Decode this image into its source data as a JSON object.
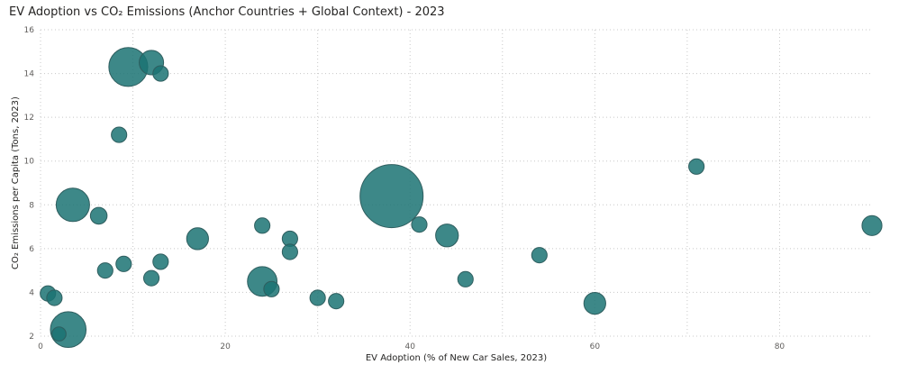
{
  "chart_data": {
    "type": "scatter",
    "title": "EV Adoption vs CO₂ Emissions (Anchor Countries + Global Context) - 2023",
    "xlabel": "EV Adoption (% of New Car Sales, 2023)",
    "ylabel": "CO₂ Emissions per Capita (Tons, 2023)",
    "xlim": [
      0,
      90
    ],
    "ylim": [
      2,
      16
    ],
    "xticks": [
      0,
      20,
      40,
      60,
      80
    ],
    "yticks": [
      2,
      4,
      6,
      8,
      10,
      12,
      14,
      16
    ],
    "grid": true,
    "bubble_color": "#1b7373",
    "points": [
      {
        "x": 38,
        "y": 8.4,
        "size": 1.0
      },
      {
        "x": 9.5,
        "y": 14.3,
        "size": 0.38
      },
      {
        "x": 12,
        "y": 14.5,
        "size": 0.15
      },
      {
        "x": 13,
        "y": 14.0,
        "size": 0.06
      },
      {
        "x": 8.5,
        "y": 11.2,
        "size": 0.06
      },
      {
        "x": 3.5,
        "y": 8.0,
        "size": 0.28
      },
      {
        "x": 6.3,
        "y": 7.5,
        "size": 0.07
      },
      {
        "x": 3,
        "y": 2.3,
        "size": 0.32
      },
      {
        "x": 2,
        "y": 2.1,
        "size": 0.05
      },
      {
        "x": 0.8,
        "y": 3.95,
        "size": 0.06
      },
      {
        "x": 1.5,
        "y": 3.75,
        "size": 0.06
      },
      {
        "x": 7,
        "y": 5.0,
        "size": 0.06
      },
      {
        "x": 9,
        "y": 5.3,
        "size": 0.06
      },
      {
        "x": 12,
        "y": 4.65,
        "size": 0.06
      },
      {
        "x": 13,
        "y": 5.4,
        "size": 0.06
      },
      {
        "x": 17,
        "y": 6.45,
        "size": 0.12
      },
      {
        "x": 24,
        "y": 7.05,
        "size": 0.06
      },
      {
        "x": 24,
        "y": 4.5,
        "size": 0.22
      },
      {
        "x": 25,
        "y": 4.15,
        "size": 0.06
      },
      {
        "x": 27,
        "y": 6.45,
        "size": 0.06
      },
      {
        "x": 27,
        "y": 5.85,
        "size": 0.06
      },
      {
        "x": 30,
        "y": 3.75,
        "size": 0.06
      },
      {
        "x": 32,
        "y": 3.6,
        "size": 0.06
      },
      {
        "x": 41,
        "y": 7.1,
        "size": 0.06
      },
      {
        "x": 44,
        "y": 6.6,
        "size": 0.13
      },
      {
        "x": 46,
        "y": 4.6,
        "size": 0.06
      },
      {
        "x": 54,
        "y": 5.7,
        "size": 0.06
      },
      {
        "x": 60,
        "y": 3.5,
        "size": 0.12
      },
      {
        "x": 71,
        "y": 9.75,
        "size": 0.06
      },
      {
        "x": 90,
        "y": 7.05,
        "size": 0.1
      }
    ]
  }
}
